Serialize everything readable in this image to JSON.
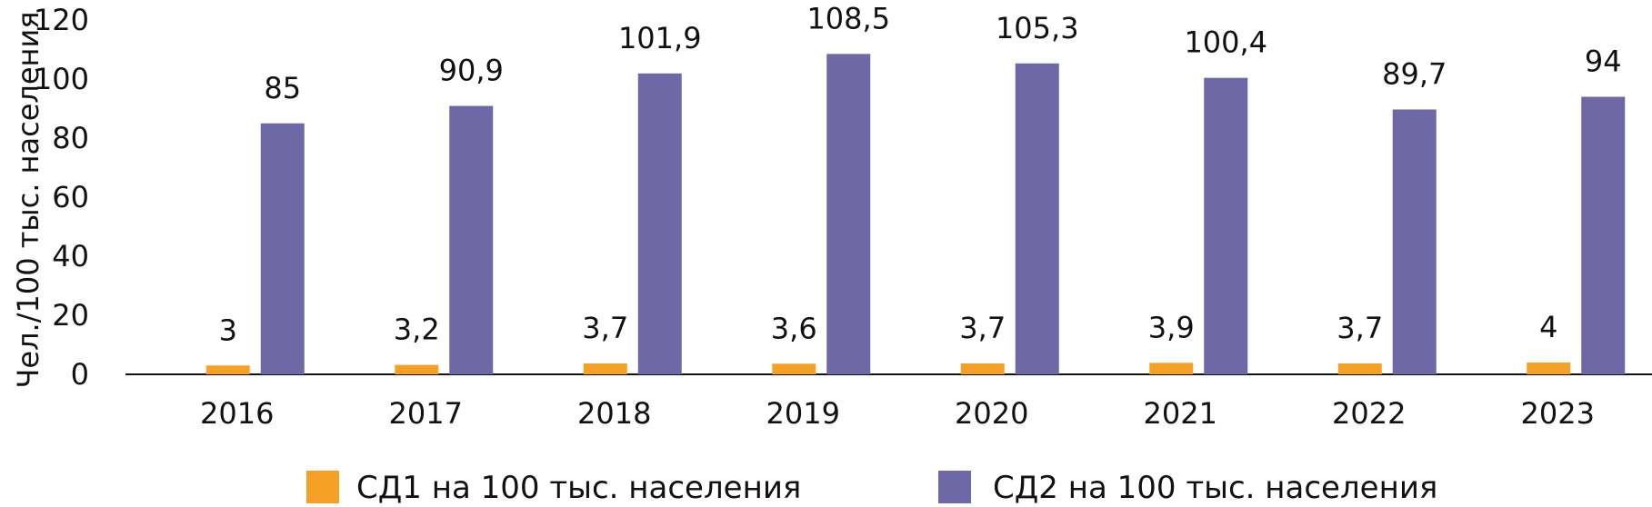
{
  "chart_data": {
    "type": "bar",
    "title": "",
    "xlabel": "",
    "ylabel": "Чел./100 тыс. населения",
    "ylim": [
      0,
      120
    ],
    "yticks": [
      0,
      20,
      40,
      60,
      80,
      100,
      120
    ],
    "categories": [
      "2016",
      "2017",
      "2018",
      "2019",
      "2020",
      "2021",
      "2022",
      "2023"
    ],
    "series": [
      {
        "name": "СД1 на 100 тыс. населения",
        "color": "#f5a126",
        "values": [
          3,
          3.2,
          3.7,
          3.6,
          3.7,
          3.9,
          3.7,
          4
        ],
        "labels": [
          "3",
          "3,2",
          "3,7",
          "3,6",
          "3,7",
          "3,9",
          "3,7",
          "4"
        ]
      },
      {
        "name": "СД2 на 100 тыс. населения",
        "color": "#6e68a6",
        "values": [
          85,
          90.9,
          101.9,
          108.5,
          105.3,
          100.4,
          89.7,
          94
        ],
        "labels": [
          "85",
          "90,9",
          "101,9",
          "108,5",
          "105,3",
          "100,4",
          "89,7",
          "94"
        ]
      }
    ],
    "grid": false,
    "legend": "bottom"
  }
}
